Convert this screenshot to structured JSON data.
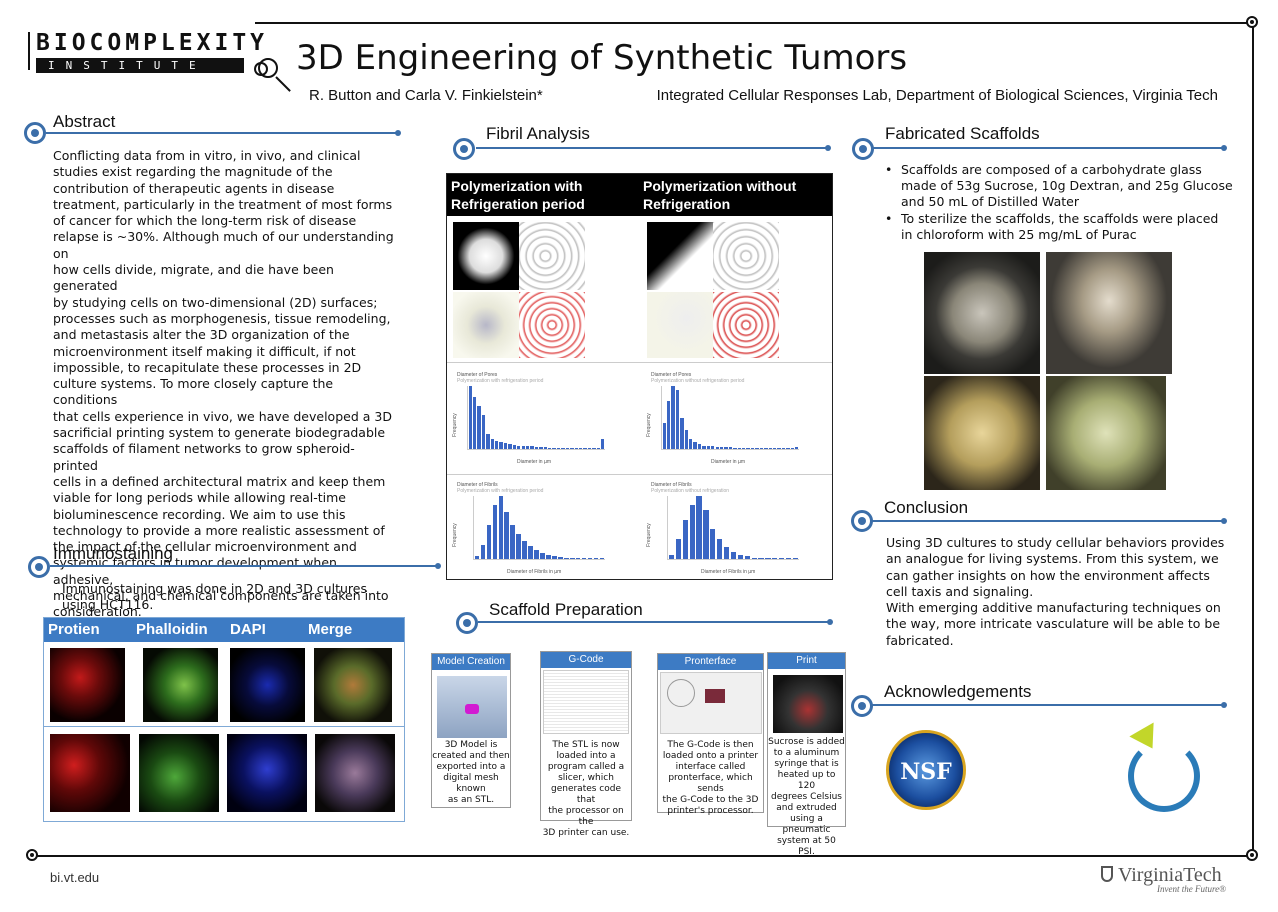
{
  "header": {
    "logo_line1": "BIOCOMPLEXITY",
    "logo_line2": "INSTITUTE",
    "title": "3D Engineering of Synthetic Tumors",
    "authors": "R. Button and Carla V. Finkielstein*",
    "affiliation": "Integrated Cellular Responses Lab, Department of Biological Sciences, Virginia Tech"
  },
  "abstract": {
    "heading": "Abstract",
    "lines": [
      "Conflicting data from in vitro, in vivo, and clinical",
      "studies exist regarding the magnitude of the",
      "contribution of therapeutic agents in disease",
      "treatment, particularly in the treatment of most forms",
      "of cancer for which the long-term risk of disease",
      "relapse is ~30%. Although much of our understanding on",
      "how cells divide, migrate, and die have been generated",
      "by studying cells on two-dimensional (2D) surfaces;",
      "processes such as morphogenesis, tissue remodeling,",
      "and metastasis alter the 3D organization of the",
      "microenvironment itself making it difficult, if not",
      "impossible, to recapitulate these processes in 2D",
      "culture systems. To more closely capture the conditions",
      "that cells experience in vivo, we have developed a 3D",
      "sacrificial printing system to generate biodegradable",
      "scaffolds of filament networks to grow spheroid-printed",
      "cells in a defined architectural matrix and keep them",
      "viable for long periods while allowing real-time",
      "bioluminescence recording. We aim to use this",
      "technology to provide a more realistic assessment of",
      "the impact of the cellular microenvironment and",
      "systemic factors in tumor development when adhesive,",
      "mechanical, and chemical components are taken into",
      "consideration."
    ]
  },
  "immuno": {
    "heading": "Immunostaining",
    "text_line1": "Immunostaining was done in 2D and 3D cultures",
    "text_line2": "using HCT116.",
    "columns": [
      "Protien",
      "Phalloidin",
      "DAPI",
      "Merge"
    ]
  },
  "fibril": {
    "heading": "Fibril Analysis",
    "col1_line1": "Polymerization with",
    "col1_line2": "Refrigeration period",
    "col2_line1": "Polymerization without",
    "col2_line2": "Refrigeration"
  },
  "chart_data": [
    {
      "type": "bar",
      "title": "Diameter of Pores",
      "subtitle": "Polymerization with refrigeration period",
      "ylabel": "Frequency",
      "xlabel": "Diameter in µm",
      "values": [
        90,
        75,
        62,
        48,
        22,
        14,
        12,
        10,
        8,
        7,
        6,
        5,
        4,
        4,
        4,
        3,
        3,
        3,
        2,
        2,
        2,
        2,
        2,
        2,
        2,
        2,
        2,
        2,
        1,
        1,
        14
      ]
    },
    {
      "type": "bar",
      "title": "Diameter of Pores",
      "subtitle": "Polymerization without refrigeration period",
      "ylabel": "Frequency",
      "xlabel": "Diameter in µm",
      "values": [
        30,
        55,
        72,
        68,
        35,
        22,
        12,
        8,
        6,
        4,
        3,
        3,
        2,
        2,
        2,
        2,
        1,
        1,
        1,
        1,
        1,
        1,
        1,
        1,
        1,
        1,
        1,
        1,
        1,
        1,
        2
      ]
    },
    {
      "type": "bar",
      "title": "Diameter of Fibrils",
      "subtitle": "Polymerization with refrigeration period",
      "ylabel": "Frequency",
      "xlabel": "Diameter of Fibrils in µm",
      "values": [
        5,
        22,
        52,
        82,
        96,
        72,
        52,
        38,
        28,
        20,
        14,
        9,
        6,
        4,
        3,
        2,
        2,
        1,
        1,
        1,
        1,
        1
      ]
    },
    {
      "type": "bar",
      "title": "Diameter of Fibrils",
      "subtitle": "Polymerization without refrigeration",
      "ylabel": "Frequency",
      "xlabel": "Diameter of Fibrils in µm",
      "values": [
        6,
        30,
        60,
        82,
        96,
        74,
        46,
        30,
        18,
        10,
        6,
        4,
        2,
        2,
        1,
        1,
        1,
        1,
        1
      ]
    }
  ],
  "scaffold_prep": {
    "heading": "Scaffold Preparation",
    "steps": [
      {
        "title": "Model Creation",
        "lines": [
          "3D Model is",
          "created and then",
          "exported into a",
          "digital mesh known",
          "as an STL."
        ]
      },
      {
        "title": "G-Code",
        "lines": [
          "The STL is now",
          "loaded into a",
          "program called a",
          "slicer, which",
          "generates code that",
          "the processor on the",
          "3D printer can use."
        ]
      },
      {
        "title": "Pronterface",
        "lines": [
          "The G-Code is then",
          "loaded onto a printer",
          "interface called",
          "pronterface, which sends",
          "the G-Code to the 3D",
          "printer's processor."
        ]
      },
      {
        "title": "Print",
        "lines": [
          "Sucrose is added",
          "to a aluminum",
          "syringe that is",
          "heated up to 120",
          "degrees Celsius",
          "and extruded",
          "using a pneumatic",
          "system at 50 PSI."
        ]
      }
    ]
  },
  "fabricated": {
    "heading": "Fabricated Scaffolds",
    "bullet1": [
      "Scaffolds are composed of a carbohydrate glass",
      "made of 53g Sucrose, 10g Dextran, and 25g Glucose",
      "and 50 mL  of Distilled Water"
    ],
    "bullet2": [
      "To sterilize the scaffolds, the scaffolds were placed",
      "in chloroform with 25 mg/mL of Purac"
    ]
  },
  "conclusion": {
    "heading": "Conclusion",
    "lines": [
      "Using 3D cultures to study cellular behaviors provides",
      "an analogue for living systems. From this system, we",
      "can gather insights on how the environment affects",
      "cell taxis and signaling.",
      "With emerging additive manufacturing techniques on",
      "the way, more intricate vasculature will be able to be",
      "fabricated."
    ]
  },
  "ack": {
    "heading": "Acknowledgements",
    "nsf": "NSF"
  },
  "footer": {
    "url": "bi.vt.edu",
    "vt": "VirginiaTech",
    "vt_tag": "Invent the Future®"
  }
}
